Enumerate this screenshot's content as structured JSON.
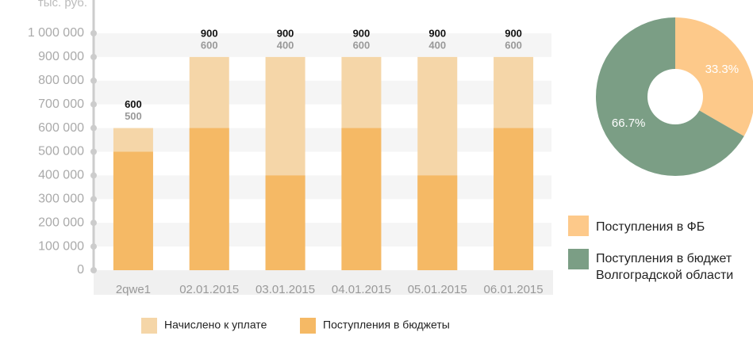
{
  "chart_data": [
    {
      "type": "bar",
      "y_label": "тыс. руб.",
      "categories": [
        "2qwe1",
        "02.01.2015",
        "03.01.2015",
        "04.01.2015",
        "05.01.2015",
        "06.01.2015"
      ],
      "series": [
        {
          "name": "Начислено к уплате",
          "color": "#f5d6a8",
          "values": [
            600000,
            900000,
            900000,
            900000,
            900000,
            900000
          ],
          "value_labels": [
            "600",
            "900",
            "900",
            "900",
            "900",
            "900"
          ]
        },
        {
          "name": "Поступления в бюджеты",
          "color": "#f5b965",
          "values": [
            500000,
            600000,
            400000,
            600000,
            400000,
            600000
          ],
          "value_labels": [
            "500",
            "600",
            "400",
            "600",
            "400",
            "600"
          ]
        }
      ],
      "ylim": [
        0,
        1000000
      ],
      "yticks": [
        0,
        {
          "value": 100000,
          "label": "100 000"
        },
        {
          "value": 200000,
          "label": "200 000"
        },
        {
          "value": 300000,
          "label": "300 000"
        },
        {
          "value": 400000,
          "label": "400 000"
        },
        {
          "value": 500000,
          "label": "500 000"
        },
        {
          "value": 600000,
          "label": "600 000"
        },
        {
          "value": 700000,
          "label": "700 000"
        },
        {
          "value": 800000,
          "label": "800 000"
        },
        {
          "value": 900000,
          "label": "900 000"
        },
        {
          "value": 1000000,
          "label": "1 000 000"
        }
      ],
      "grid": true
    },
    {
      "type": "pie",
      "categories": [
        "Поступления в ФБ",
        "Поступления в бюджет Волгоградской области"
      ],
      "values": [
        33.3,
        66.7
      ],
      "value_labels": [
        "33.3%",
        "66.7%"
      ],
      "colors": [
        "#fdc98a",
        "#7b9e85"
      ]
    }
  ]
}
